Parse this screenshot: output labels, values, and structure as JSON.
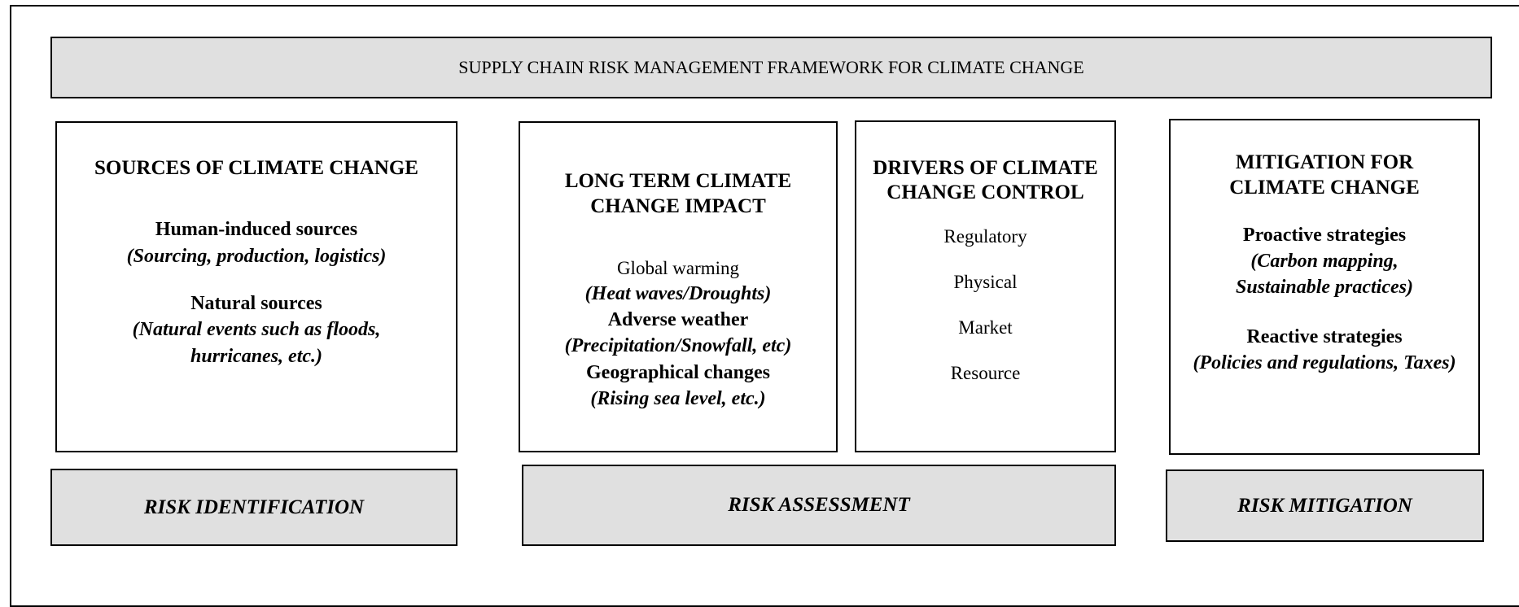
{
  "title": "SUPPLY CHAIN RISK MANAGEMENT FRAMEWORK FOR CLIMATE CHANGE",
  "sources": {
    "heading": "SOURCES OF CLIMATE CHANGE",
    "items": [
      {
        "label": "Human-induced sources",
        "detail": "(Sourcing, production, logistics)"
      },
      {
        "label": "Natural sources",
        "detail": "(Natural events such as floods, hurricanes, etc.)"
      }
    ]
  },
  "impact": {
    "heading": "LONG TERM CLIMATE CHANGE IMPACT",
    "items": [
      {
        "label": "Global warming",
        "detail": "(Heat waves/Droughts)"
      },
      {
        "label": "Adverse weather",
        "detail": "(Precipitation/Snowfall, etc)"
      },
      {
        "label": "Geographical changes",
        "detail": "(Rising sea level, etc.)"
      }
    ]
  },
  "drivers": {
    "heading": "DRIVERS OF CLIMATE CHANGE CONTROL",
    "items": [
      "Regulatory",
      "Physical",
      "Market",
      "Resource"
    ]
  },
  "mitigation": {
    "heading": "MITIGATION FOR CLIMATE CHANGE",
    "items": [
      {
        "label": "Proactive strategies",
        "detail": "(Carbon mapping, Sustainable practices)"
      },
      {
        "label": "Reactive strategies",
        "detail": "(Policies and regulations, Taxes)"
      }
    ]
  },
  "stages": [
    "RISK IDENTIFICATION",
    "RISK ASSESSMENT",
    "RISK MITIGATION"
  ]
}
